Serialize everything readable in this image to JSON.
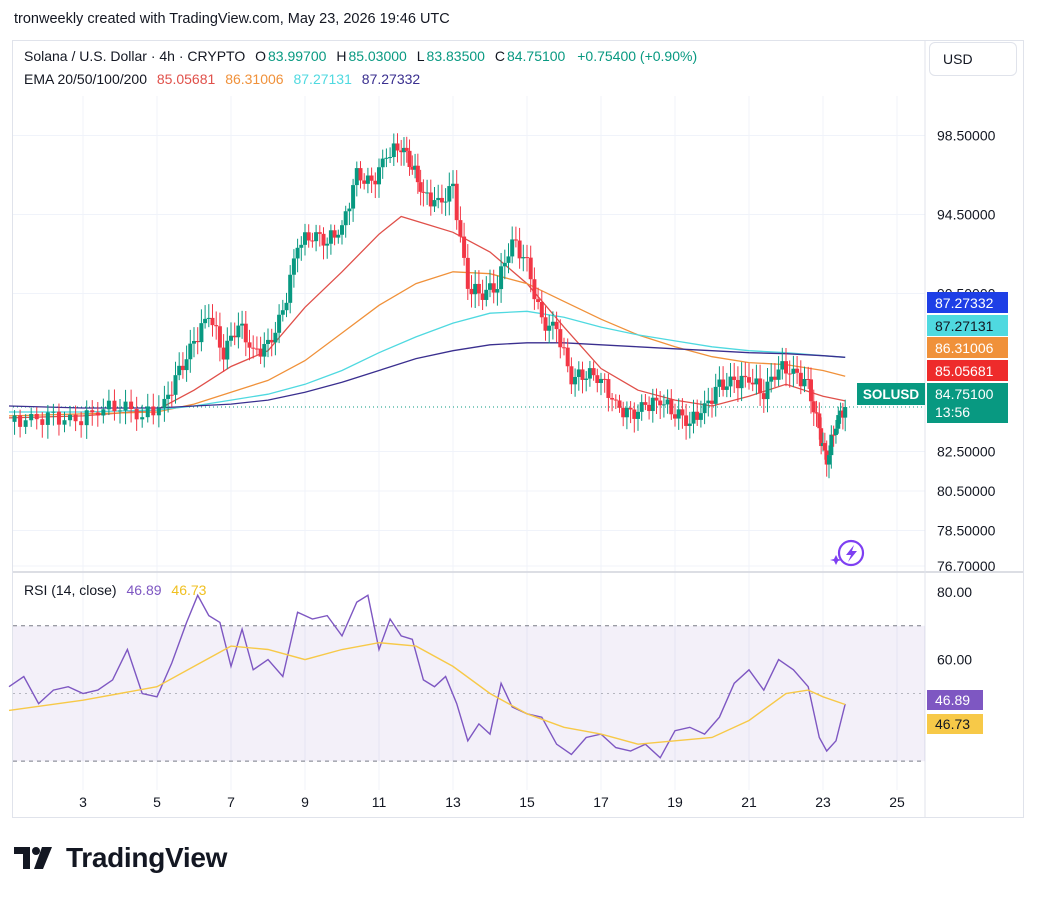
{
  "header": {
    "attribution": "tronweekly created with TradingView.com, May 23, 2026 19:46 UTC"
  },
  "currency_button": {
    "label": "USD"
  },
  "legend": {
    "symbol": "Solana / U.S. Dollar · 4h · CRYPTO",
    "o_label": "O",
    "o_value": "83.99700",
    "h_label": "H",
    "h_value": "85.03000",
    "l_label": "L",
    "l_value": "83.83500",
    "c_label": "C",
    "c_value": "84.75100",
    "change": "+0.75400 (+0.90%)",
    "ema_label": "EMA 20/50/100/200",
    "ema": [
      {
        "value": "85.05681",
        "color": "#e0504a"
      },
      {
        "value": "86.31006",
        "color": "#f0913a"
      },
      {
        "value": "87.27131",
        "color": "#4fd9e0"
      },
      {
        "value": "87.27332",
        "color": "#3a2f8f"
      }
    ]
  },
  "price_tags": {
    "ema200": {
      "text": "87.27332",
      "color": "#1e3fe6",
      "y": 87.27332
    },
    "ema100": {
      "text": "87.27131",
      "color": "#4fd9e0",
      "y": 87.27131
    },
    "ema50": {
      "text": "86.31006",
      "color": "#f0913a",
      "y": 86.31006
    },
    "ema20": {
      "text": "85.05681",
      "color": "#ee2b2b",
      "y": 85.05681
    }
  },
  "last_price": {
    "symbol": "SOLUSD",
    "value": "84.75100",
    "countdown": "13:56"
  },
  "rsi": {
    "label": "RSI (14, close)",
    "value": "46.89",
    "ma_value": "46.73",
    "line_color": "#7e57c2",
    "ma_color": "#f7c948",
    "ticks": [
      "80.00",
      "60.00"
    ]
  },
  "brand": {
    "name": "TradingView"
  },
  "chart_data": [
    {
      "type": "candlestick",
      "title": "Solana / U.S. Dollar · 4h · CRYPTO",
      "ylim": [
        76.7,
        100.5
      ],
      "y_ticks": [
        "98.50000",
        "94.50000",
        "90.50000",
        "82.50000",
        "80.50000",
        "78.50000",
        "76.70000"
      ],
      "x_ticks": [
        "3",
        "5",
        "7",
        "9",
        "11",
        "13",
        "15",
        "17",
        "19",
        "21",
        "23",
        "25"
      ],
      "x_tick_days": [
        3,
        5,
        7,
        9,
        11,
        13,
        15,
        17,
        19,
        21,
        23,
        25
      ],
      "close_series_by_day": {
        "x": [
          1.0,
          1.6,
          2.2,
          2.8,
          3.4,
          4.0,
          4.6,
          5.2,
          5.6,
          6.0,
          6.4,
          6.8,
          7.2,
          7.6,
          8.0,
          8.4,
          8.8,
          9.2,
          9.6,
          10.0,
          10.4,
          10.8,
          11.2,
          11.6,
          11.9,
          12.2,
          12.6,
          13.0,
          13.4,
          13.8,
          14.2,
          14.6,
          15.0,
          15.4,
          15.8,
          16.2,
          16.6,
          17.0,
          17.4,
          17.8,
          18.2,
          18.6,
          19.0,
          19.4,
          19.8,
          20.2,
          20.6,
          21.0,
          21.4,
          21.8,
          22.2,
          22.6,
          22.9,
          23.1,
          23.35,
          23.6
        ],
        "close": [
          84.0,
          84.1,
          84.2,
          84.0,
          84.6,
          84.9,
          84.3,
          84.9,
          86.5,
          88.0,
          89.5,
          87.5,
          89.0,
          87.5,
          87.8,
          89.5,
          93.0,
          93.5,
          93.2,
          93.8,
          96.5,
          96.0,
          97.5,
          98.0,
          97.0,
          95.5,
          95.0,
          95.8,
          90.8,
          90.5,
          91.0,
          93.2,
          92.0,
          89.0,
          88.7,
          86.2,
          86.5,
          86.2,
          84.8,
          84.3,
          84.8,
          85.1,
          84.5,
          84.0,
          84.7,
          85.8,
          86.0,
          86.2,
          85.5,
          86.8,
          86.5,
          85.8,
          83.5,
          82.0,
          84.0,
          84.751
        ]
      },
      "series": [
        {
          "name": "EMA 20",
          "color": "#e0504a",
          "x": [
            1,
            3,
            5,
            6,
            7,
            8,
            9,
            10,
            11,
            11.6,
            12.3,
            13,
            14,
            15,
            16,
            17,
            18,
            19,
            20,
            21,
            22,
            23,
            23.6
          ],
          "values": [
            84.2,
            84.3,
            84.6,
            85.6,
            86.8,
            87.6,
            89.8,
            91.6,
            93.5,
            94.4,
            94.0,
            93.6,
            92.6,
            91.0,
            88.8,
            86.7,
            85.6,
            85.1,
            84.8,
            85.3,
            85.9,
            85.3,
            85.06
          ]
        },
        {
          "name": "EMA 50",
          "color": "#f0913a",
          "x": [
            1,
            3,
            5,
            6,
            7,
            8,
            9,
            10,
            11,
            12,
            13,
            14,
            15,
            16,
            17,
            18,
            19,
            20,
            21,
            22,
            23,
            23.6
          ],
          "values": [
            84.3,
            84.4,
            84.5,
            84.9,
            85.5,
            86.1,
            87.1,
            88.5,
            89.9,
            91.0,
            91.6,
            91.5,
            91.0,
            90.1,
            89.2,
            88.4,
            87.8,
            87.3,
            87.0,
            86.9,
            86.6,
            86.31
          ]
        },
        {
          "name": "EMA 100",
          "color": "#4fd9e0",
          "x": [
            1,
            3,
            5,
            6,
            7,
            8,
            9,
            10,
            11,
            12,
            13,
            14,
            15,
            16,
            17,
            18,
            19,
            20,
            21,
            22,
            23,
            23.6
          ],
          "values": [
            84.5,
            84.5,
            84.6,
            84.8,
            85.1,
            85.4,
            85.9,
            86.6,
            87.5,
            88.3,
            89.0,
            89.5,
            89.6,
            89.3,
            88.8,
            88.4,
            88.1,
            87.8,
            87.6,
            87.5,
            87.35,
            87.27
          ]
        },
        {
          "name": "EMA 200",
          "color": "#3a2f8f",
          "x": [
            1,
            3,
            5,
            6,
            7,
            8,
            9,
            10,
            11,
            12,
            13,
            14,
            15,
            16,
            17,
            18,
            19,
            20,
            21,
            22,
            23,
            23.6
          ],
          "values": [
            84.8,
            84.7,
            84.7,
            84.8,
            84.9,
            85.1,
            85.5,
            86.0,
            86.6,
            87.2,
            87.6,
            87.9,
            88.0,
            88.0,
            87.9,
            87.8,
            87.7,
            87.6,
            87.5,
            87.45,
            87.35,
            87.27
          ]
        }
      ]
    },
    {
      "type": "line",
      "title": "RSI (14, close)",
      "ylim": [
        20,
        85
      ],
      "y_ticks": [
        "80.00",
        "60.00"
      ],
      "bands": [
        70,
        30
      ],
      "x_ticks": [
        "3",
        "5",
        "7",
        "9",
        "11",
        "13",
        "15",
        "17",
        "19",
        "21",
        "23",
        "25"
      ],
      "series": [
        {
          "name": "RSI",
          "color": "#7e57c2",
          "x": [
            1,
            1.4,
            1.8,
            2.2,
            2.6,
            3.0,
            3.4,
            3.8,
            4.2,
            4.6,
            5.0,
            5.4,
            5.8,
            6.1,
            6.4,
            6.7,
            7.0,
            7.3,
            7.6,
            8.0,
            8.4,
            8.8,
            9.2,
            9.6,
            10.0,
            10.4,
            10.7,
            11.0,
            11.3,
            11.6,
            11.9,
            12.2,
            12.5,
            12.8,
            13.1,
            13.4,
            13.7,
            14.0,
            14.3,
            14.6,
            15.0,
            15.4,
            15.8,
            16.2,
            16.6,
            17.0,
            17.4,
            17.8,
            18.2,
            18.6,
            19.0,
            19.4,
            19.8,
            20.2,
            20.6,
            21.0,
            21.4,
            21.8,
            22.2,
            22.6,
            22.9,
            23.1,
            23.35,
            23.6
          ],
          "values": [
            52,
            55,
            47,
            51,
            52,
            50,
            51,
            54,
            63,
            50,
            49,
            59,
            71,
            79,
            73,
            71,
            58,
            69,
            57,
            60,
            55,
            74,
            72,
            73,
            67,
            77,
            79,
            63,
            72,
            67,
            66,
            54,
            52,
            55,
            47,
            36,
            41,
            38,
            53,
            46,
            44,
            43,
            35,
            32,
            37,
            38,
            34,
            33,
            35,
            31,
            39,
            40,
            38,
            43,
            53,
            57,
            51,
            60,
            57,
            52,
            37,
            33,
            36,
            46.89
          ]
        },
        {
          "name": "RSI-based MA",
          "color": "#f7c948",
          "x": [
            1,
            3,
            5,
            6,
            7,
            8,
            9,
            10,
            11,
            12,
            13,
            14,
            15,
            16,
            17,
            18,
            19,
            20,
            21,
            22,
            22.6,
            23,
            23.6
          ],
          "values": [
            45,
            48,
            52,
            58,
            64,
            63,
            60,
            63,
            65,
            64,
            58,
            50,
            44,
            40,
            38,
            35,
            36,
            37,
            42,
            50,
            51,
            49,
            46.73
          ]
        }
      ]
    }
  ]
}
